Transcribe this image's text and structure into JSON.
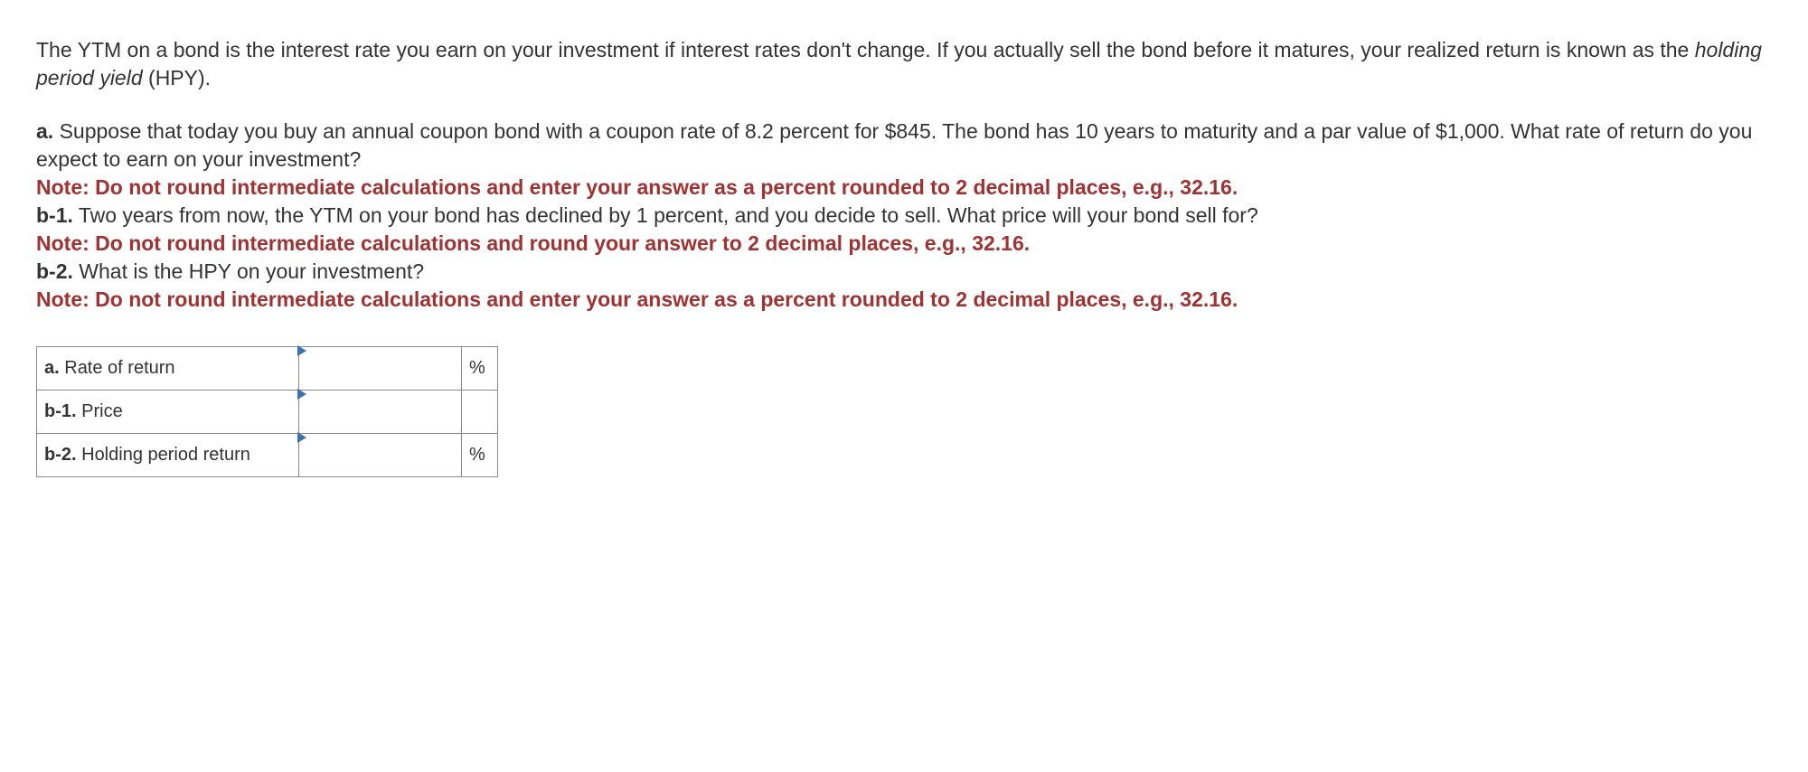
{
  "intro": {
    "part1": "The YTM on a bond is the interest rate you earn on your investment if interest rates don't change. If you actually sell the bond before it matures, your realized return is known as the ",
    "italic": "holding period yield",
    "part2": " (HPY)."
  },
  "questions": {
    "a_label": "a.",
    "a_text": " Suppose that today you buy an annual coupon bond with a coupon rate of 8.2 percent for $845. The bond has 10 years to maturity and a par value of $1,000. What rate of return do you expect to earn on your investment?",
    "note_a": "Note: Do not round intermediate calculations and enter your answer as a percent rounded to 2 decimal places, e.g., 32.16.",
    "b1_label": "b-1.",
    "b1_text": " Two years from now, the YTM on your bond has declined by 1 percent, and you decide to sell. What price will your bond sell for?",
    "note_b1": "Note: Do not round intermediate calculations and round your answer to 2 decimal places, e.g., 32.16.",
    "b2_label": "b-2.",
    "b2_text": " What is the HPY on your investment?",
    "note_b2": "Note: Do not round intermediate calculations and enter your answer as a percent rounded to 2 decimal places, e.g., 32.16."
  },
  "table": {
    "rows": [
      {
        "label_bold": "a.",
        "label_rest": " Rate of return",
        "unit": "%"
      },
      {
        "label_bold": "b-1.",
        "label_rest": " Price",
        "unit": ""
      },
      {
        "label_bold": "b-2.",
        "label_rest": " Holding period return",
        "unit": "%"
      }
    ]
  }
}
